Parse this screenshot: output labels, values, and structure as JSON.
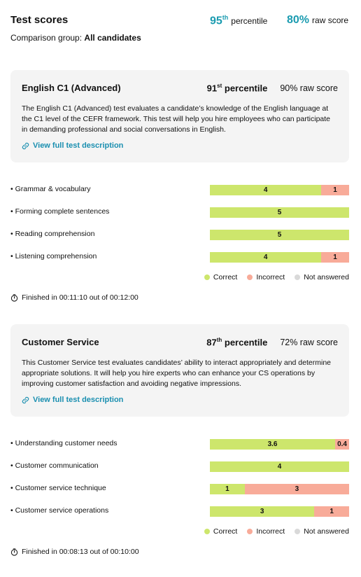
{
  "header": {
    "title": "Test scores",
    "percentile": "95",
    "percentile_suffix": "th",
    "percentile_label": "percentile",
    "raw_score": "80%",
    "raw_score_label": "raw score",
    "comparison_label": "Comparison group:",
    "comparison_value": "All candidates"
  },
  "colors": {
    "correct": "#cde66c",
    "incorrect": "#f8ab99",
    "not_answered": "#d9d9d9"
  },
  "tests": [
    {
      "name": "English C1 (Advanced)",
      "percentile": "91",
      "percentile_suffix": "st",
      "percentile_label": "percentile",
      "raw_score": "90% raw score",
      "description": "The English C1 (Advanced) test evaluates a candidate’s knowledge of the English language at the C1 level of the CEFR framework. This test will help you hire employees who can participate in demanding professional and social conversations in English.",
      "link": "View full test description",
      "skills": [
        {
          "name": "Grammar & vocabulary",
          "correct": 4,
          "incorrect": 1
        },
        {
          "name": "Forming complete sentences",
          "correct": 5
        },
        {
          "name": "Reading comprehension",
          "correct": 5
        },
        {
          "name": "Listening comprehension",
          "correct": 4,
          "incorrect": 1
        }
      ],
      "legend": [
        "Correct",
        "Incorrect",
        "Not answered"
      ],
      "finished": "Finished in 00:11:10 out of 00:12:00"
    },
    {
      "name": "Customer Service",
      "percentile": "87",
      "percentile_suffix": "th",
      "percentile_label": "percentile",
      "raw_score": "72% raw score",
      "description": "This Customer Service test evaluates candidates’ ability to interact appropriately and determine appropriate solutions. It will help you hire experts who can enhance your CS operations by improving customer satisfaction and avoiding negative impressions.",
      "link": "View full test description",
      "skills": [
        {
          "name": "Understanding customer needs",
          "correct": 3.6,
          "incorrect": 0.4
        },
        {
          "name": "Customer communication",
          "correct": 4
        },
        {
          "name": "Customer service technique",
          "correct": 1,
          "incorrect": 3
        },
        {
          "name": "Customer service operations",
          "correct": 3,
          "incorrect": 1
        }
      ],
      "legend": [
        "Correct",
        "Incorrect",
        "Not answered"
      ],
      "finished": "Finished in 00:08:13 out of 00:10:00"
    }
  ]
}
